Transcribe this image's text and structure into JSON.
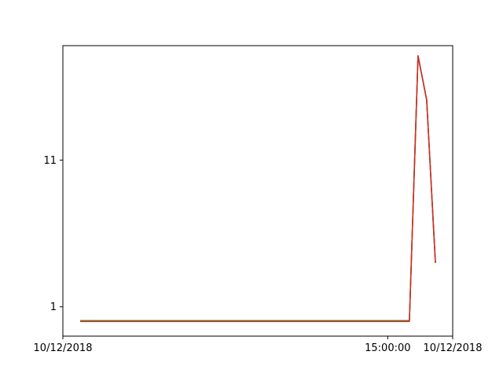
{
  "chart_data": {
    "type": "line",
    "title": "",
    "xlabel": "",
    "ylabel": "",
    "x_ticks": [
      {
        "label": "10/12/2018",
        "hour": 0
      },
      {
        "label": "15:00:00",
        "hour": 15
      },
      {
        "label": "10/12/2018",
        "hour": 18
      }
    ],
    "y_ticks": [
      {
        "label": "1",
        "value": 1
      },
      {
        "label": "11",
        "value": 11
      }
    ],
    "xlim_hours": [
      0,
      18
    ],
    "ylim": [
      -1,
      18.8
    ],
    "grid": false,
    "colors": {
      "axes": "#000000",
      "background": "#ffffff",
      "series_lines": [
        "#1f77b4",
        "#ff7f0e",
        "#2ca02c",
        "#d62728"
      ]
    },
    "series": [
      {
        "x_hours": [
          0.8,
          16.0,
          16.4,
          16.8,
          17.2
        ],
        "values": [
          0.05,
          0.05,
          18.1,
          15.1,
          4.0
        ]
      },
      {
        "x_hours": [
          0.8,
          16.0,
          16.4,
          16.8,
          17.2
        ],
        "values": [
          0.05,
          0.05,
          18.1,
          15.1,
          4.0
        ]
      },
      {
        "x_hours": [
          0.8,
          16.0,
          16.4,
          16.8,
          17.2
        ],
        "values": [
          0.05,
          0.05,
          18.1,
          15.1,
          4.0
        ]
      },
      {
        "x_hours": [
          0.8,
          16.0,
          16.4,
          16.8,
          17.2
        ],
        "values": [
          0.0,
          0.0,
          18.1,
          15.1,
          4.0
        ]
      }
    ]
  }
}
